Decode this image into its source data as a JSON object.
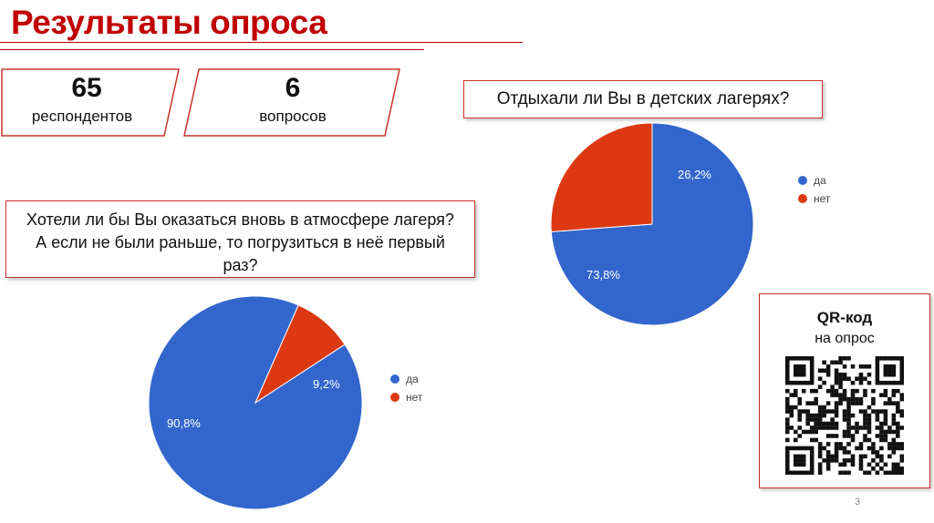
{
  "slide": {
    "title": "Результаты опроса",
    "page_number": "3"
  },
  "stats": [
    {
      "value": "65",
      "label": "респондентов"
    },
    {
      "value": "6",
      "label": "вопросов"
    }
  ],
  "qr": {
    "title": "QR-код",
    "subtitle": "на опрос"
  },
  "colors": {
    "accent": "#c00000",
    "yes": "#3366cc",
    "no": "#dc3912",
    "border": "#c9322a"
  },
  "chart_data": [
    {
      "type": "pie",
      "title": "Хотели ли бы Вы оказаться вновь в атмосфере лагеря? А если не были раньше, то погрузиться в неё первый раз?",
      "title_lines": [
        "Хотели ли бы Вы оказаться вновь в атмосфере лагеря?",
        "А если не были раньше, то погрузиться в неё первый",
        "раз?"
      ],
      "categories": [
        "да",
        "нет"
      ],
      "values": [
        90.8,
        9.2
      ],
      "value_labels": [
        "90,8%",
        "9,2%"
      ],
      "colors": [
        "#3366cc",
        "#dc3912"
      ],
      "legend": "right"
    },
    {
      "type": "pie",
      "title": "Отдыхали ли Вы в детских лагерях?",
      "categories": [
        "да",
        "нет"
      ],
      "values": [
        73.8,
        26.2
      ],
      "value_labels": [
        "73,8%",
        "26,2%"
      ],
      "colors": [
        "#3366cc",
        "#dc3912"
      ],
      "legend": "right"
    }
  ]
}
